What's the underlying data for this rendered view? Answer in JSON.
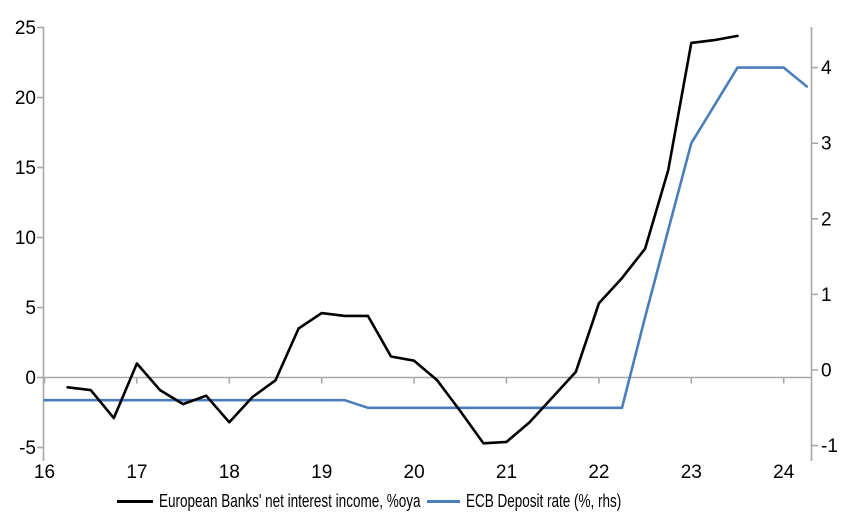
{
  "chart_data": {
    "type": "line",
    "title": "",
    "x_axis": {
      "ticks": [
        16,
        17,
        18,
        19,
        20,
        21,
        22,
        23,
        24
      ],
      "range": [
        16,
        24.3
      ],
      "label": ""
    },
    "left_axis": {
      "ticks": [
        25,
        20,
        15,
        10,
        5,
        0,
        -5
      ],
      "range": [
        -5,
        25
      ],
      "label": ""
    },
    "right_axis": {
      "ticks": [
        4,
        3,
        2,
        1,
        0,
        -1
      ],
      "range": [
        -1,
        4.55
      ],
      "label": ""
    },
    "grid": "zero-line-only",
    "legend_position": "bottom",
    "series": [
      {
        "name": "European Banks' net interest income, %oya",
        "axis": "left",
        "color": "#000000",
        "x": [
          16.25,
          16.5,
          16.75,
          17.0,
          17.25,
          17.5,
          17.75,
          18.0,
          18.25,
          18.5,
          18.75,
          19.0,
          19.25,
          19.5,
          19.75,
          20.0,
          20.25,
          20.5,
          20.75,
          21.0,
          21.25,
          21.5,
          21.75,
          22.0,
          22.25,
          22.5,
          22.75,
          23.0,
          23.25,
          23.5
        ],
        "values": [
          -0.7,
          -0.9,
          -2.9,
          1.0,
          -0.9,
          -1.9,
          -1.3,
          -3.2,
          -1.4,
          -0.2,
          3.5,
          4.6,
          4.4,
          4.4,
          1.5,
          1.2,
          -0.2,
          -2.4,
          -4.7,
          -4.6,
          -3.2,
          -1.4,
          0.4,
          5.3,
          7.1,
          9.2,
          14.8,
          23.9,
          24.1,
          24.4
        ]
      },
      {
        "name": "ECB Deposit rate (%, rhs)",
        "axis": "right",
        "color": "#4a7ebb",
        "x": [
          16.0,
          16.25,
          16.5,
          16.75,
          17.0,
          17.25,
          17.5,
          17.75,
          18.0,
          18.25,
          18.5,
          18.75,
          19.0,
          19.25,
          19.5,
          19.75,
          20.0,
          20.25,
          20.5,
          20.75,
          21.0,
          21.25,
          21.5,
          21.75,
          22.0,
          22.25,
          22.5,
          22.75,
          23.0,
          23.25,
          23.5,
          23.75,
          24.0,
          24.25
        ],
        "values": [
          -0.4,
          -0.4,
          -0.4,
          -0.4,
          -0.4,
          -0.4,
          -0.4,
          -0.4,
          -0.4,
          -0.4,
          -0.4,
          -0.4,
          -0.4,
          -0.4,
          -0.5,
          -0.5,
          -0.5,
          -0.5,
          -0.5,
          -0.5,
          -0.5,
          -0.5,
          -0.5,
          -0.5,
          -0.5,
          -0.5,
          0.7,
          1.85,
          3.0,
          3.5,
          4.0,
          4.0,
          4.0,
          3.75
        ]
      }
    ]
  },
  "colors": {
    "axis": "#a8a8a8",
    "zero_line": "#a8a8a8",
    "background": "#ffffff",
    "tick_label": "#000000"
  }
}
